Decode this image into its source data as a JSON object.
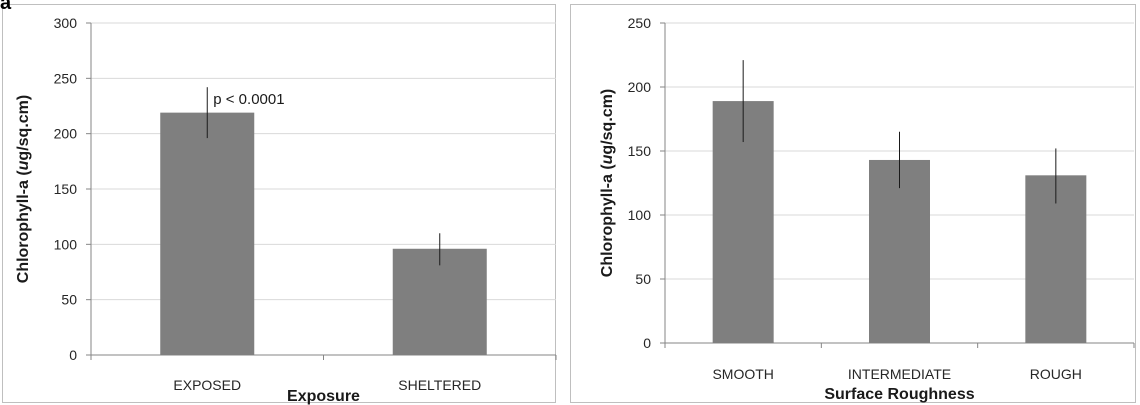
{
  "panels": [
    {
      "letter": "a",
      "chart_data": {
        "type": "bar",
        "title": "",
        "xlabel": "Exposure",
        "ylabel_main": "Chlorophyll-a (",
        "ylabel_italic": "u",
        "ylabel_tail": "g/sq.cm)",
        "categories": [
          "EXPOSED",
          "SHELTERED"
        ],
        "values": [
          219,
          96
        ],
        "error_low": [
          196,
          81
        ],
        "error_high": [
          242,
          110
        ],
        "ylim": [
          0,
          300
        ],
        "yticks": [
          0,
          50,
          100,
          150,
          200,
          250,
          300
        ],
        "grid": true,
        "bar_color": "#7f7f7f",
        "annotation": {
          "text": "p < 0.0001",
          "category_index": 0
        }
      }
    },
    {
      "letter": "",
      "chart_data": {
        "type": "bar",
        "title": "",
        "xlabel": "Surface Roughness",
        "ylabel_main": "Chlorophyll-a (",
        "ylabel_italic": "u",
        "ylabel_tail": "g/sq.cm)",
        "categories": [
          "SMOOTH",
          "INTERMEDIATE",
          "ROUGH"
        ],
        "values": [
          189,
          143,
          131
        ],
        "error_low": [
          157,
          121,
          109
        ],
        "error_high": [
          221,
          165,
          152
        ],
        "ylim": [
          0,
          250
        ],
        "yticks": [
          0,
          50,
          100,
          150,
          200,
          250
        ],
        "grid": true,
        "bar_color": "#7f7f7f"
      }
    }
  ]
}
